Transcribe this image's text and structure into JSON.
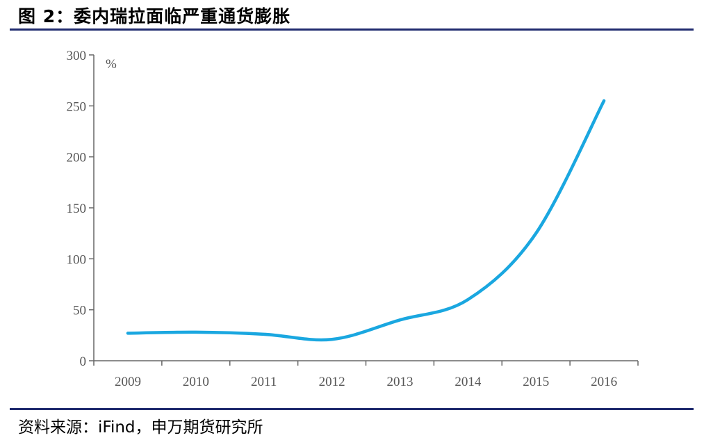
{
  "header": {
    "title": "图 2：委内瑞拉面临严重通货膨胀"
  },
  "footer": {
    "source": "资料来源：iFind，申万期货研究所"
  },
  "chart_data": {
    "type": "line",
    "title": "",
    "xlabel": "",
    "ylabel": "%",
    "categories": [
      "2009",
      "2010",
      "2011",
      "2012",
      "2013",
      "2014",
      "2015",
      "2016"
    ],
    "yticks": [
      0,
      50,
      100,
      150,
      200,
      250,
      300
    ],
    "ylim": [
      0,
      300
    ],
    "grid": false,
    "legend": "none",
    "line_color": "#1aa7e0",
    "series": [
      {
        "values": [
          27,
          28,
          26,
          21,
          40,
          60,
          125,
          255
        ]
      }
    ]
  }
}
